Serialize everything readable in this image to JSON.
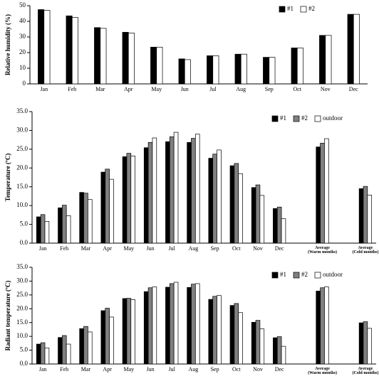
{
  "chart_data": [
    {
      "type": "bar",
      "ylabel": "Relative humidity (%)",
      "categories": [
        "Jan",
        "Feb",
        "Mar",
        "Apr",
        "May",
        "Jun",
        "Jul",
        "Aug",
        "Sep",
        "Oct",
        "Nov",
        "Dec"
      ],
      "series": [
        {
          "name": "#1",
          "color": "#000000",
          "values": [
            47.5,
            43.5,
            36,
            33,
            23.5,
            16,
            18,
            19,
            17,
            23,
            31,
            44.5
          ]
        },
        {
          "name": "#2",
          "color": "#ffffff",
          "values": [
            47,
            42.5,
            35.5,
            32.5,
            23.5,
            15.5,
            18,
            19,
            17,
            23,
            31,
            44.5
          ]
        }
      ],
      "ylim": [
        0,
        50
      ],
      "yticks": [
        0,
        10,
        20,
        30,
        40,
        50
      ],
      "legend": "upper right"
    },
    {
      "type": "bar",
      "ylabel": "Temperature (ºC)",
      "categories": [
        "Jan",
        "Feb",
        "Mar",
        "Apr",
        "May",
        "Jun",
        "Jul",
        "Aug",
        "Sep",
        "Oct",
        "Nov",
        "Dec",
        null,
        "Average\n(Warm months)",
        null,
        "Average\n(Cold  months)"
      ],
      "series": [
        {
          "name": "#1",
          "color": "#000000",
          "values": [
            7.0,
            9.4,
            13.5,
            18.9,
            23.0,
            25.4,
            27.0,
            26.8,
            22.6,
            20.6,
            14.8,
            9.2,
            null,
            25.6,
            null,
            14.5
          ]
        },
        {
          "name": "#2",
          "color": "#808080",
          "values": [
            7.6,
            10.1,
            13.3,
            19.7,
            23.9,
            26.8,
            28.3,
            27.9,
            23.7,
            21.2,
            15.5,
            9.6,
            null,
            26.6,
            null,
            15.1
          ]
        },
        {
          "name": "outdoor",
          "color": "#ffffff",
          "values": [
            5.8,
            7.3,
            11.6,
            17.0,
            23.2,
            28.0,
            29.5,
            29.0,
            24.8,
            18.5,
            12.7,
            6.5,
            null,
            27.8,
            null,
            12.8
          ]
        }
      ],
      "ylim": [
        0,
        35
      ],
      "yticks": [
        {
          "value": 0,
          "label": "0.0"
        },
        {
          "value": 5,
          "label": "5.0"
        },
        {
          "value": 10,
          "label": "10.0"
        },
        {
          "value": 15,
          "label": "15.0"
        },
        {
          "value": 20,
          "label": "20.0"
        },
        {
          "value": 25,
          "label": "25.0"
        },
        {
          "value": 30,
          "label": "30.0"
        },
        {
          "value": 35,
          "label": "35.0"
        }
      ],
      "legend": "upper right"
    },
    {
      "type": "bar",
      "ylabel": "Radiant temperature (ºC)",
      "categories": [
        "Jan",
        "Feb",
        "Mar",
        "Apr",
        "May",
        "Jun",
        "Jul",
        "Aug",
        "Sep",
        "Oct",
        "Nov",
        "Dec",
        null,
        "Average\n(Warm months)",
        null,
        "Average\n(Cold months)"
      ],
      "series": [
        {
          "name": "#1",
          "color": "#000000",
          "values": [
            7.2,
            9.6,
            12.8,
            19.3,
            23.7,
            26.2,
            27.8,
            27.7,
            23.4,
            21.2,
            15.1,
            9.5,
            null,
            26.4,
            null,
            14.9
          ]
        },
        {
          "name": "#2",
          "color": "#808080",
          "values": [
            7.7,
            10.3,
            13.6,
            20.2,
            23.8,
            27.6,
            29.1,
            28.9,
            24.5,
            21.9,
            15.8,
            9.9,
            null,
            27.6,
            null,
            15.3
          ]
        },
        {
          "name": "outdoor",
          "color": "#ffffff",
          "values": [
            5.8,
            7.2,
            11.6,
            17.0,
            23.3,
            27.9,
            29.6,
            29.1,
            24.8,
            18.6,
            12.7,
            6.4,
            null,
            27.9,
            null,
            12.9
          ]
        }
      ],
      "ylim": [
        0,
        35
      ],
      "yticks": [
        {
          "value": 0,
          "label": "0.0"
        },
        {
          "value": 5,
          "label": "5.0"
        },
        {
          "value": 10,
          "label": "10.0"
        },
        {
          "value": 15,
          "label": "15.0"
        },
        {
          "value": 20,
          "label": "20.0"
        },
        {
          "value": 25,
          "label": "25.0"
        },
        {
          "value": 30,
          "label": "30.0"
        },
        {
          "value": 35,
          "label": "35.0"
        }
      ],
      "legend": "upper right"
    }
  ]
}
